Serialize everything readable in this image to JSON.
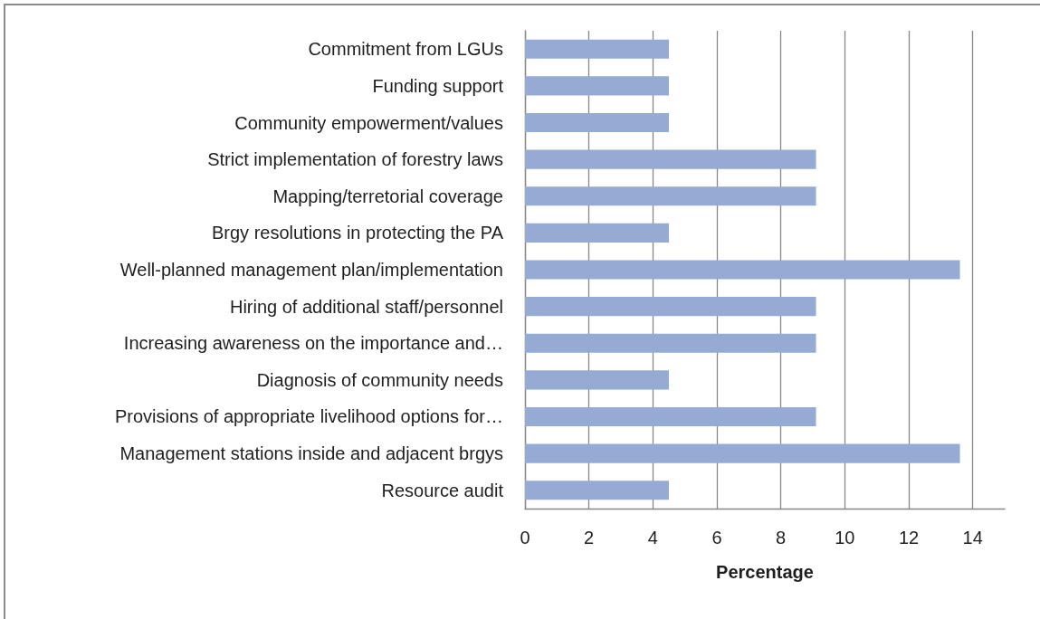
{
  "chart_data": {
    "type": "bar",
    "orientation": "horizontal",
    "categories": [
      "Commitment from LGUs",
      "Funding support",
      "Community empowerment/values",
      "Strict implementation of forestry laws",
      "Mapping/terretorial coverage",
      "Brgy resolutions in protecting the PA",
      "Well-planned management plan/implementation",
      "Hiring of additional staff/personnel",
      "Increasing awareness on the importance and…",
      "Diagnosis of community needs",
      "Provisions of appropriate livelihood options for…",
      "Management stations inside and adjacent brgys",
      "Resource audit"
    ],
    "values": [
      4.5,
      4.5,
      4.5,
      9.1,
      9.1,
      4.5,
      13.6,
      9.1,
      9.1,
      4.5,
      9.1,
      13.6,
      4.5
    ],
    "color": "#95abd3",
    "xlabel": "Percentage",
    "xlim": [
      0,
      15
    ],
    "xticks": [
      0,
      2,
      4,
      6,
      8,
      10,
      12,
      14
    ],
    "grid": "x"
  }
}
